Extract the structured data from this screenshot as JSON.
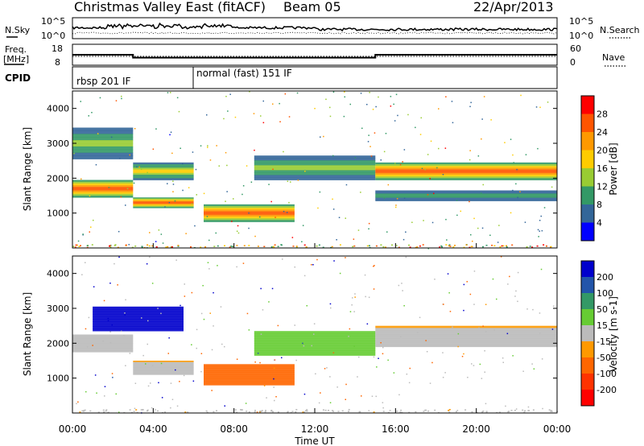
{
  "header": {
    "title": "Christmas Valley East (fitACF)",
    "beam": "Beam 05",
    "date": "22/Apr/2013"
  },
  "noise_panel": {
    "left_label": "N.Sky",
    "right_label": "N.Search",
    "tick_top": "10^5",
    "tick_bottom": "10^0"
  },
  "freq_panel": {
    "left_label_1": "Freq.",
    "left_label_2": "[MHz]",
    "right_label": "Nave",
    "left_ticks": [
      "18",
      "8"
    ],
    "right_ticks": [
      "60",
      "0"
    ]
  },
  "cpid_panel": {
    "label": "CPID",
    "modes": [
      {
        "name": "rbsp 201 IF",
        "start_hour": 0
      },
      {
        "name": "normal (fast) 151 IF",
        "start_hour": 6
      }
    ]
  },
  "power_colorbar": {
    "label": "Power [dB]",
    "ticks": [
      "28",
      "24",
      "20",
      "16",
      "12",
      "8",
      "4"
    ],
    "colors": [
      "#ff0000",
      "#ff5500",
      "#ff9900",
      "#ffcc00",
      "#99cc33",
      "#339966",
      "#336699",
      "#0000ff"
    ]
  },
  "velocity_colorbar": {
    "label": "Velocity [m s-1]",
    "ticks": [
      "200",
      "100",
      "50",
      "15",
      "-15",
      "-50",
      "-100",
      "-200"
    ],
    "colors": [
      "#0000cc",
      "#2255aa",
      "#339966",
      "#66cc33",
      "#bbbbbb",
      "#ff9900",
      "#ff6600",
      "#ff3300",
      "#ff0000"
    ]
  },
  "chart_data": {
    "type": "heatmap",
    "xlabel": "Time UT",
    "x_ticks": [
      "00:00",
      "04:00",
      "08:00",
      "12:00",
      "16:00",
      "20:00",
      "00:00"
    ],
    "x_range_hours": [
      0,
      24
    ],
    "ylabel": "Slant Range [km]",
    "y_ticks": [
      1000,
      2000,
      3000,
      4000
    ],
    "y_range_km": [
      0,
      4500
    ],
    "freq_mhz_segments": [
      {
        "start_hour": 0,
        "end_hour": 3,
        "value": 13
      },
      {
        "start_hour": 3,
        "end_hour": 15,
        "value": 11
      },
      {
        "start_hour": 15,
        "end_hour": 24,
        "value": 13
      }
    ],
    "power_bands": [
      {
        "start_hour": 0,
        "end_hour": 3,
        "center_km": 1700,
        "width_km": 500,
        "peak_db": 28
      },
      {
        "start_hour": 0,
        "end_hour": 3,
        "center_km": 3000,
        "width_km": 900,
        "peak_db": 12
      },
      {
        "start_hour": 3,
        "end_hour": 6,
        "center_km": 1300,
        "width_km": 300,
        "peak_db": 28
      },
      {
        "start_hour": 3,
        "end_hour": 6,
        "center_km": 2200,
        "width_km": 500,
        "peak_db": 16
      },
      {
        "start_hour": 6.5,
        "end_hour": 11,
        "center_km": 1000,
        "width_km": 500,
        "peak_db": 28
      },
      {
        "start_hour": 9,
        "end_hour": 15,
        "center_km": 2300,
        "width_km": 700,
        "peak_db": 12
      },
      {
        "start_hour": 15,
        "end_hour": 24,
        "center_km": 2200,
        "width_km": 500,
        "peak_db": 24
      },
      {
        "start_hour": 15,
        "end_hour": 24,
        "center_km": 1500,
        "width_km": 300,
        "peak_db": 8
      }
    ],
    "velocity_bands": [
      {
        "start_hour": 0,
        "end_hour": 3,
        "center_km": 2000,
        "width_km": 500,
        "velocity": 0
      },
      {
        "start_hour": 1,
        "end_hour": 5.5,
        "center_km": 2700,
        "width_km": 700,
        "velocity": 200
      },
      {
        "start_hour": 3,
        "end_hour": 6,
        "center_km": 1300,
        "width_km": 400,
        "velocity": 0
      },
      {
        "start_hour": 6.5,
        "end_hour": 11,
        "center_km": 1100,
        "width_km": 600,
        "velocity": -50
      },
      {
        "start_hour": 9,
        "end_hour": 15,
        "center_km": 2000,
        "width_km": 700,
        "velocity": 50
      },
      {
        "start_hour": 15,
        "end_hour": 24,
        "center_km": 2200,
        "width_km": 600,
        "velocity": 0
      }
    ]
  }
}
